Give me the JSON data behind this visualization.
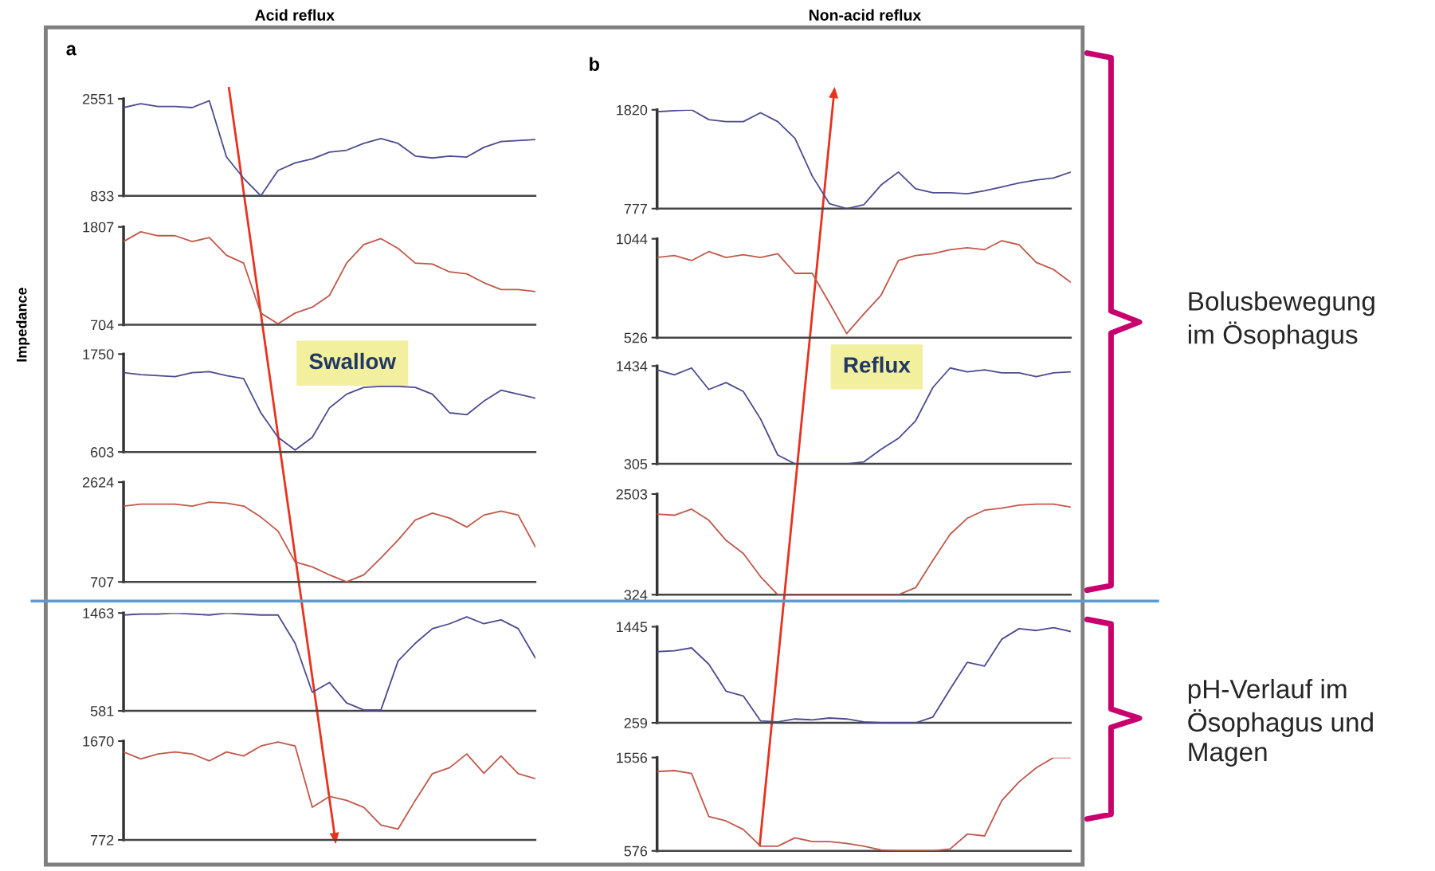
{
  "chart_data": [
    {
      "type": "line",
      "title": "Acid reflux",
      "subtitle": "a",
      "categories": [
        null,
        null,
        null,
        null,
        null,
        null,
        null,
        null,
        null,
        null,
        null,
        null,
        null,
        null,
        null,
        null,
        null,
        null,
        null,
        null,
        null,
        null,
        null,
        null,
        null
      ],
      "series": [
        {
          "color": "#4b4b8f",
          "values": [
            2396,
            2465,
            2414,
            2414,
            2396,
            2517,
            1520,
            1142,
            833,
            1280,
            1417,
            1486,
            1606,
            1640,
            1761,
            1847,
            1761,
            1537,
            1503,
            1537,
            1520,
            1692,
            1795,
            1812,
            1829
          ]
        }
      ],
      "ylim": [
        833,
        2551
      ],
      "yticks": [
        833,
        2551
      ],
      "tick_labels": "y"
    },
    {
      "type": "line",
      "ylabel": "Impedance",
      "categories": [
        null,
        null,
        null,
        null,
        null,
        null,
        null,
        null,
        null,
        null,
        null,
        null,
        null,
        null,
        null,
        null,
        null,
        null,
        null,
        null,
        null,
        null,
        null,
        null,
        null
      ],
      "series": [
        {
          "color": "#c0584a",
          "values": [
            1642,
            1752,
            1708,
            1708,
            1642,
            1686,
            1487,
            1399,
            836,
            715,
            836,
            903,
            1035,
            1399,
            1608,
            1675,
            1564,
            1399,
            1388,
            1300,
            1278,
            1178,
            1101,
            1101,
            1079
          ]
        }
      ],
      "ylim": [
        704,
        1807
      ],
      "yticks": [
        704,
        1807
      ],
      "tick_labels": "y"
    },
    {
      "type": "line",
      "annotations": [
        "Swallow"
      ],
      "categories": [
        null,
        null,
        null,
        null,
        null,
        null,
        null,
        null,
        null,
        null,
        null,
        null,
        null,
        null,
        null,
        null,
        null,
        null,
        null,
        null,
        null,
        null,
        null,
        null,
        null
      ],
      "series": [
        {
          "color": "#4b4b8f",
          "values": [
            1532,
            1509,
            1498,
            1486,
            1532,
            1544,
            1498,
            1463,
            1062,
            775,
            626,
            775,
            1119,
            1280,
            1360,
            1371,
            1371,
            1360,
            1280,
            1062,
            1039,
            1199,
            1326,
            1280,
            1234
          ]
        }
      ],
      "ylim": [
        603,
        1750
      ],
      "yticks": [
        603,
        1750
      ],
      "tick_labels": "y"
    },
    {
      "type": "line",
      "categories": [
        null,
        null,
        null,
        null,
        null,
        null,
        null,
        null,
        null,
        null,
        null,
        null,
        null,
        null,
        null,
        null,
        null,
        null,
        null,
        null,
        null,
        null,
        null,
        null,
        null
      ],
      "series": [
        {
          "color": "#c0584a",
          "values": [
            2164,
            2202,
            2202,
            2202,
            2164,
            2240,
            2221,
            2164,
            1953,
            1685,
            1090,
            995,
            841,
            707,
            841,
            1167,
            1512,
            1896,
            2030,
            1934,
            1761,
            1991,
            2068,
            1991,
            1378
          ]
        }
      ],
      "ylim": [
        707,
        2624
      ],
      "yticks": [
        707,
        2624
      ],
      "tick_labels": "y"
    },
    {
      "type": "line",
      "categories": [
        null,
        null,
        null,
        null,
        null,
        null,
        null,
        null,
        null,
        null,
        null,
        null,
        null,
        null,
        null,
        null,
        null,
        null,
        null,
        null,
        null,
        null,
        null,
        null,
        null
      ],
      "series": [
        {
          "color": "#4b4b8f",
          "values": [
            1445,
            1454,
            1454,
            1463,
            1454,
            1445,
            1463,
            1454,
            1445,
            1445,
            1190,
            749,
            837,
            652,
            590,
            590,
            1031,
            1190,
            1322,
            1366,
            1428,
            1366,
            1401,
            1322,
            1057
          ]
        }
      ],
      "ylim": [
        581,
        1463
      ],
      "yticks": [
        581,
        1463
      ],
      "tick_labels": "y"
    },
    {
      "type": "line",
      "categories": [
        null,
        null,
        null,
        null,
        null,
        null,
        null,
        null,
        null,
        null,
        null,
        null,
        null,
        null,
        null,
        null,
        null,
        null,
        null,
        null,
        null,
        null,
        null,
        null,
        null
      ],
      "series": [
        {
          "color": "#c0584a",
          "values": [
            1571,
            1508,
            1553,
            1571,
            1553,
            1490,
            1571,
            1535,
            1625,
            1661,
            1625,
            1068,
            1167,
            1131,
            1068,
            907,
            871,
            1131,
            1374,
            1428,
            1553,
            1378,
            1535,
            1374,
            1329
          ]
        }
      ],
      "ylim": [
        772,
        1670
      ],
      "yticks": [
        772,
        1670
      ],
      "tick_labels": "y"
    },
    {
      "type": "line",
      "title": "Non-acid reflux",
      "subtitle": "b",
      "categories": [
        null,
        null,
        null,
        null,
        null,
        null,
        null,
        null,
        null,
        null,
        null,
        null,
        null,
        null,
        null,
        null,
        null,
        null,
        null,
        null,
        null,
        null,
        null,
        null,
        null
      ],
      "series": [
        {
          "color": "#4b4b8f",
          "values": [
            1799,
            1810,
            1820,
            1716,
            1695,
            1695,
            1789,
            1695,
            1518,
            1121,
            829,
            777,
            819,
            1027,
            1163,
            986,
            944,
            944,
            933,
            965,
            1006,
            1048,
            1079,
            1100,
            1163
          ]
        }
      ],
      "ylim": [
        777,
        1820
      ],
      "yticks": [
        777,
        1820
      ],
      "tick_labels": "y"
    },
    {
      "type": "line",
      "annotations": [
        "Bolusbewegung\nim Ösophagus"
      ],
      "categories": [
        null,
        null,
        null,
        null,
        null,
        null,
        null,
        null,
        null,
        null,
        null,
        null,
        null,
        null,
        null,
        null,
        null,
        null,
        null,
        null,
        null,
        null,
        null,
        null,
        null
      ],
      "series": [
        {
          "color": "#c0584a",
          "values": [
            946,
            956,
            930,
            977,
            946,
            961,
            946,
            966,
            863,
            863,
            707,
            547,
            650,
            749,
            930,
            956,
            966,
            987,
            997,
            987,
            1034,
            1013,
            920,
            883,
            816
          ]
        }
      ],
      "ylim": [
        526,
        1044
      ],
      "yticks": [
        526,
        1044
      ],
      "tick_labels": "y"
    },
    {
      "type": "line",
      "annotations": [
        "Reflux"
      ],
      "categories": [
        null,
        null,
        null,
        null,
        null,
        null,
        null,
        null,
        null,
        null,
        null,
        null,
        null,
        null,
        null,
        null,
        null,
        null,
        null,
        null,
        null,
        null,
        null,
        null,
        null
      ],
      "series": [
        {
          "color": "#4b4b8f",
          "values": [
            1389,
            1332,
            1411,
            1163,
            1242,
            1140,
            824,
            407,
            305,
            305,
            305,
            305,
            328,
            474,
            599,
            802,
            1186,
            1411,
            1366,
            1389,
            1355,
            1355,
            1310,
            1355,
            1366
          ]
        }
      ],
      "ylim": [
        305,
        1434
      ],
      "yticks": [
        305,
        1434
      ],
      "tick_labels": "y"
    },
    {
      "type": "line",
      "categories": [
        null,
        null,
        null,
        null,
        null,
        null,
        null,
        null,
        null,
        null,
        null,
        null,
        null,
        null,
        null,
        null,
        null,
        null,
        null,
        null,
        null,
        null,
        null,
        null,
        null
      ],
      "series": [
        {
          "color": "#c0584a",
          "values": [
            2067,
            2045,
            2176,
            1936,
            1501,
            1217,
            716,
            324,
            324,
            324,
            324,
            324,
            324,
            324,
            324,
            477,
            1065,
            1631,
            1980,
            2154,
            2198,
            2263,
            2285,
            2285,
            2220
          ]
        }
      ],
      "ylim": [
        324,
        2503
      ],
      "yticks": [
        324,
        2503
      ],
      "tick_labels": "y"
    },
    {
      "type": "line",
      "annotations": [
        "pH-Verlauf im\nÖsophagus und\nMagen"
      ],
      "categories": [
        null,
        null,
        null,
        null,
        null,
        null,
        null,
        null,
        null,
        null,
        null,
        null,
        null,
        null,
        null,
        null,
        null,
        null,
        null,
        null,
        null,
        null,
        null,
        null,
        null
      ],
      "series": [
        {
          "color": "#4b4b8f",
          "values": [
            1137,
            1149,
            1184,
            982,
            650,
            591,
            283,
            271,
            306,
            295,
            318,
            306,
            271,
            259,
            259,
            259,
            330,
            674,
            1006,
            959,
            1291,
            1421,
            1398,
            1433,
            1386
          ]
        }
      ],
      "ylim": [
        259,
        1445
      ],
      "yticks": [
        259,
        1445
      ],
      "tick_labels": "y"
    },
    {
      "type": "line",
      "categories": [
        null,
        null,
        null,
        null,
        null,
        null,
        null,
        null,
        null,
        null,
        null,
        null,
        null,
        null,
        null,
        null,
        null,
        null,
        null,
        null,
        null,
        null,
        null,
        null,
        null
      ],
      "series": [
        {
          "color": "#c0584a",
          "values": [
            1409,
            1419,
            1389,
            937,
            890,
            801,
            625,
            625,
            713,
            674,
            674,
            654,
            625,
            586,
            576,
            576,
            576,
            596,
            752,
            733,
            1105,
            1301,
            1448,
            1556,
            1556
          ]
        }
      ],
      "ylim": [
        576,
        1556
      ],
      "yticks": [
        576,
        1556
      ],
      "tick_labels": "y"
    }
  ]
}
